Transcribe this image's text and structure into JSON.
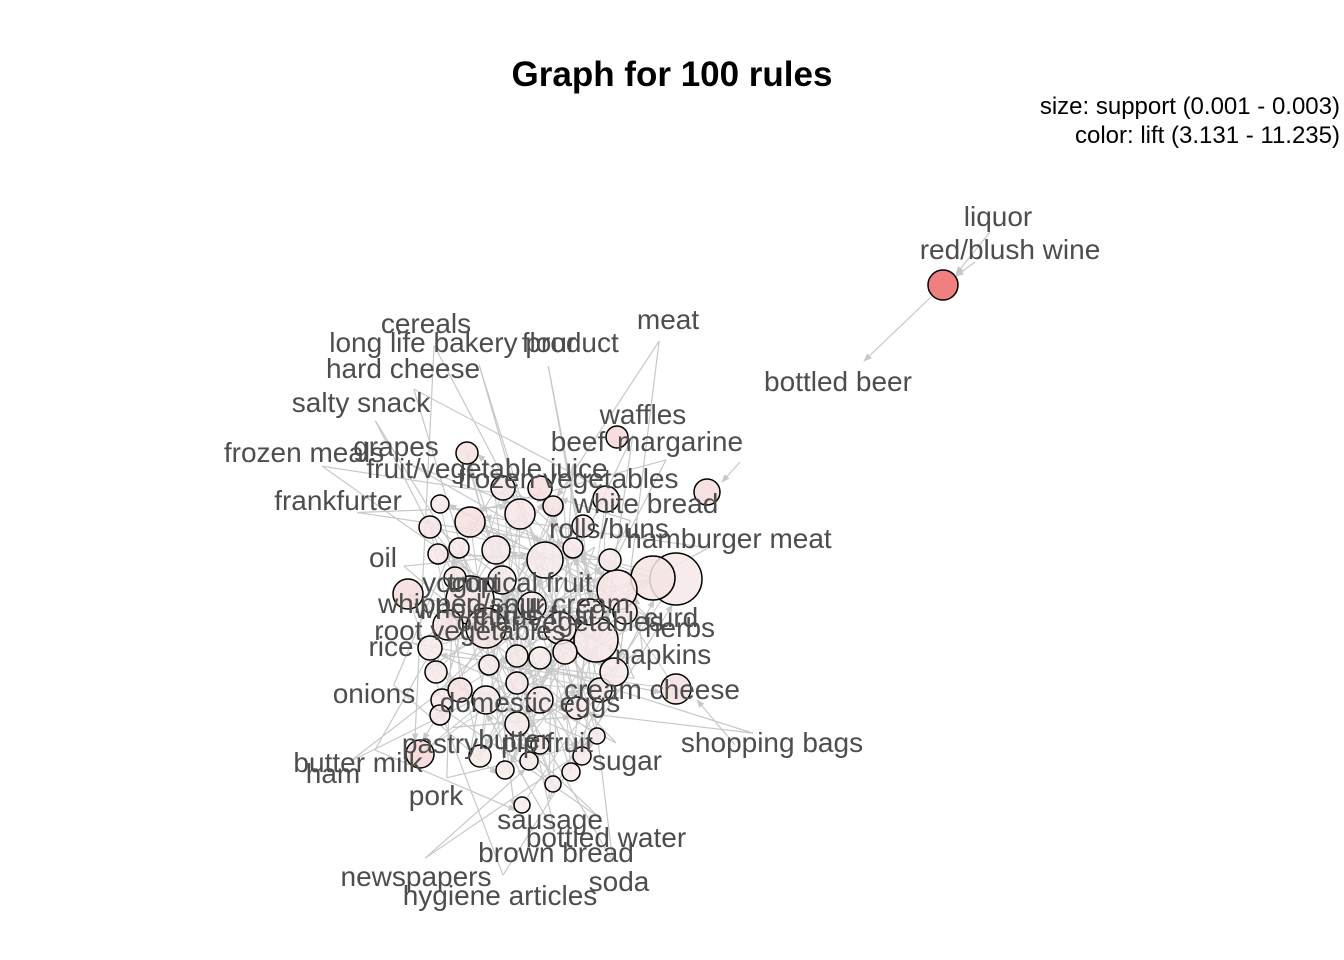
{
  "title": "Graph for 100 rules",
  "legend": {
    "size": "size: support (0.001 - 0.003)",
    "color": "color: lift (3.131 - 11.235)"
  },
  "colors": {
    "edge": "#c8c8c8",
    "rule_low": "#f7eded",
    "rule_high": "#f08080",
    "stroke": "#000000",
    "label": "#4d4d4d"
  },
  "item_labels": [
    "liquor",
    "red/blush wine",
    "bottled beer",
    "meat",
    "cereals",
    "long life bakery product",
    "flour",
    "hard cheese",
    "salty snack",
    "waffles",
    "beef",
    "margarine",
    "frozen meals",
    "grapes",
    "fruit/vegetable juice",
    "frozen vegetables",
    "frankfurter",
    "white bread",
    "rolls/buns",
    "hamburger meat",
    "oil",
    "yogurt",
    "tropical fruit",
    "whipped/sour cream",
    "other vegetables",
    "whole milk",
    "citrus fruit",
    "curd",
    "root vegetables",
    "herbs",
    "rice",
    "napkins",
    "onions",
    "cream cheese",
    "domestic eggs",
    "shopping bags",
    "pastry",
    "butter",
    "pip fruit",
    "butter milk",
    "sugar",
    "ham",
    "pork",
    "sausage",
    "bottled water",
    "brown bread",
    "newspapers",
    "soda",
    "hygiene articles"
  ]
}
